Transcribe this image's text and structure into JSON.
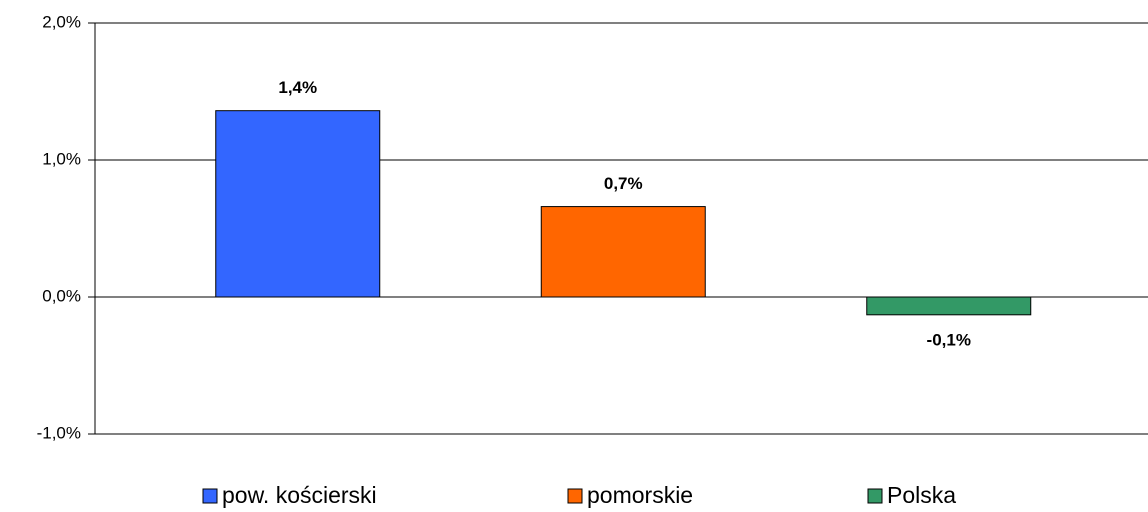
{
  "chart_data": {
    "type": "bar",
    "series": [
      {
        "name": "pow. kościerski",
        "color": "#3366ff",
        "values": [
          1.36
        ],
        "value_labels": [
          "1,4%"
        ]
      },
      {
        "name": "pomorskie",
        "color": "#ff6600",
        "values": [
          0.66
        ],
        "value_labels": [
          "0,7%"
        ]
      },
      {
        "name": "Polska",
        "color": "#339966",
        "values": [
          -0.13
        ],
        "value_labels": [
          "-0,1%"
        ]
      }
    ],
    "ylim": [
      -1,
      2
    ],
    "yticks": [
      {
        "value": -1,
        "label": "-1,0%"
      },
      {
        "value": 0,
        "label": "0,0%"
      },
      {
        "value": 1,
        "label": "1,0%"
      },
      {
        "value": 2,
        "label": "2,0%"
      }
    ],
    "grid": true
  }
}
